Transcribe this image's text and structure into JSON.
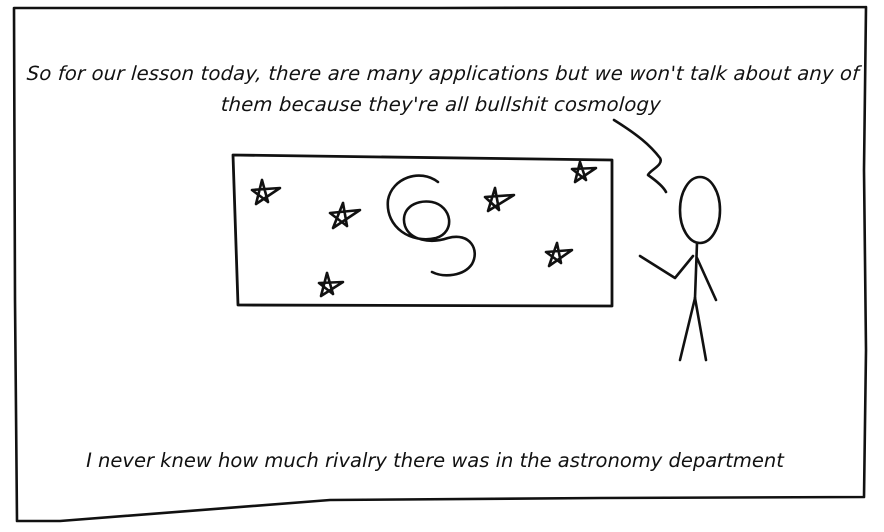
{
  "comic": {
    "speech": "So for our lesson today, there are many applications but we won't talk about any of them because they're all bullshit cosmology",
    "caption": "I never knew how much rivalry there was in the astronomy department"
  },
  "colors": {
    "ink": "#111111",
    "paper": "#ffffff"
  }
}
